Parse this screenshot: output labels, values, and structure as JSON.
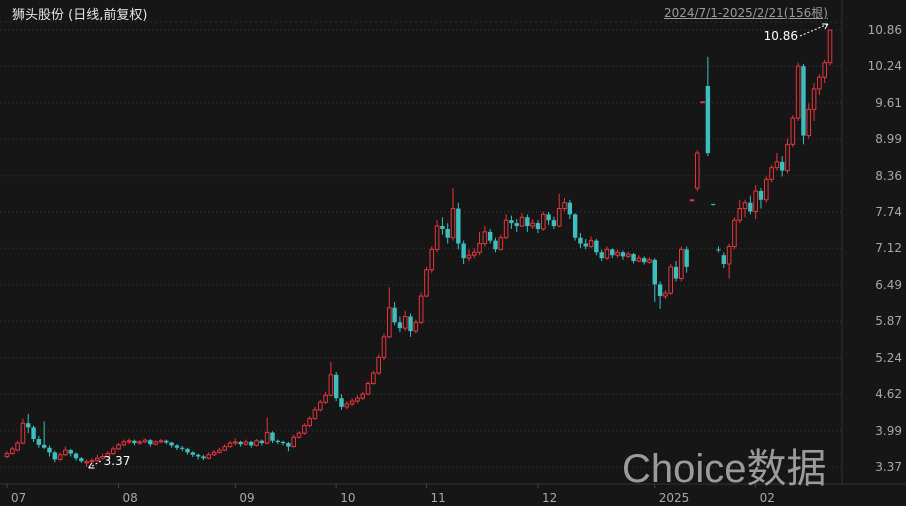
{
  "header": {
    "title": "狮头股份 (日线,前复权)",
    "range": "2024/7/1-2025/2/21(156根)"
  },
  "watermark": "Choice数据",
  "chart_data": {
    "type": "candlestick",
    "title": "狮头股份 (日线,前复权)",
    "ylim": [
      3.37,
      10.86
    ],
    "grid": true,
    "colors": {
      "up": "#e5363d",
      "down": "#3ebfbf",
      "grid": "#3a3a3a",
      "axis_text": "#a8a8a8",
      "background": "#161616"
    },
    "y_ticks": [
      "10.86",
      "10.24",
      "9.61",
      "8.99",
      "8.36",
      "7.74",
      "7.12",
      "6.49",
      "5.87",
      "5.24",
      "4.62",
      "3.99",
      "3.37"
    ],
    "x_labels": [
      {
        "label": "07",
        "index": 0
      },
      {
        "label": "08",
        "index": 21
      },
      {
        "label": "09",
        "index": 43
      },
      {
        "label": "10",
        "index": 62
      },
      {
        "label": "11",
        "index": 79
      },
      {
        "label": "12",
        "index": 100
      },
      {
        "label": "2025",
        "index": 122
      },
      {
        "label": "02",
        "index": 141
      }
    ],
    "annotations": {
      "max": {
        "label": "10.86",
        "index": 155
      },
      "min": {
        "label": "3.37",
        "index": 15
      }
    },
    "ohlc": [
      [
        3.55,
        3.64,
        3.52,
        3.6
      ],
      [
        3.6,
        3.72,
        3.58,
        3.68
      ],
      [
        3.66,
        3.82,
        3.64,
        3.78
      ],
      [
        3.78,
        4.2,
        3.76,
        4.12
      ],
      [
        4.12,
        4.28,
        3.95,
        4.05
      ],
      [
        4.05,
        4.08,
        3.8,
        3.85
      ],
      [
        3.85,
        3.9,
        3.7,
        3.75
      ],
      [
        3.75,
        4.15,
        3.68,
        3.7
      ],
      [
        3.7,
        3.74,
        3.55,
        3.62
      ],
      [
        3.62,
        3.65,
        3.45,
        3.5
      ],
      [
        3.5,
        3.62,
        3.48,
        3.58
      ],
      [
        3.58,
        3.72,
        3.56,
        3.66
      ],
      [
        3.66,
        3.68,
        3.55,
        3.6
      ],
      [
        3.6,
        3.62,
        3.48,
        3.52
      ],
      [
        3.52,
        3.54,
        3.44,
        3.47
      ],
      [
        3.44,
        3.5,
        3.37,
        3.46
      ],
      [
        3.46,
        3.52,
        3.42,
        3.48
      ],
      [
        3.48,
        3.58,
        3.46,
        3.52
      ],
      [
        3.52,
        3.6,
        3.5,
        3.55
      ],
      [
        3.55,
        3.64,
        3.52,
        3.6
      ],
      [
        3.6,
        3.72,
        3.58,
        3.68
      ],
      [
        3.68,
        3.78,
        3.66,
        3.75
      ],
      [
        3.75,
        3.84,
        3.72,
        3.8
      ],
      [
        3.8,
        3.86,
        3.76,
        3.82
      ],
      [
        3.82,
        3.84,
        3.74,
        3.78
      ],
      [
        3.78,
        3.83,
        3.75,
        3.8
      ],
      [
        3.8,
        3.86,
        3.78,
        3.83
      ],
      [
        3.83,
        3.85,
        3.72,
        3.76
      ],
      [
        3.76,
        3.83,
        3.74,
        3.8
      ],
      [
        3.8,
        3.85,
        3.78,
        3.82
      ],
      [
        3.82,
        3.84,
        3.76,
        3.79
      ],
      [
        3.79,
        3.8,
        3.7,
        3.74
      ],
      [
        3.74,
        3.76,
        3.66,
        3.7
      ],
      [
        3.7,
        3.73,
        3.64,
        3.68
      ],
      [
        3.68,
        3.7,
        3.58,
        3.62
      ],
      [
        3.62,
        3.64,
        3.54,
        3.58
      ],
      [
        3.58,
        3.6,
        3.5,
        3.55
      ],
      [
        3.55,
        3.58,
        3.49,
        3.52
      ],
      [
        3.52,
        3.62,
        3.5,
        3.58
      ],
      [
        3.58,
        3.66,
        3.56,
        3.62
      ],
      [
        3.62,
        3.7,
        3.6,
        3.66
      ],
      [
        3.66,
        3.76,
        3.64,
        3.72
      ],
      [
        3.72,
        3.82,
        3.7,
        3.78
      ],
      [
        3.78,
        3.86,
        3.74,
        3.8
      ],
      [
        3.8,
        3.82,
        3.72,
        3.76
      ],
      [
        3.76,
        3.84,
        3.74,
        3.8
      ],
      [
        3.8,
        3.82,
        3.7,
        3.74
      ],
      [
        3.74,
        3.85,
        3.72,
        3.82
      ],
      [
        3.82,
        3.84,
        3.74,
        3.78
      ],
      [
        3.78,
        4.22,
        3.76,
        3.96
      ],
      [
        3.96,
        3.98,
        3.78,
        3.82
      ],
      [
        3.82,
        3.84,
        3.76,
        3.8
      ],
      [
        3.8,
        3.82,
        3.74,
        3.78
      ],
      [
        3.78,
        3.8,
        3.64,
        3.72
      ],
      [
        3.72,
        3.92,
        3.7,
        3.88
      ],
      [
        3.88,
        3.98,
        3.86,
        3.95
      ],
      [
        3.95,
        4.12,
        3.92,
        4.08
      ],
      [
        4.08,
        4.24,
        4.05,
        4.2
      ],
      [
        4.2,
        4.4,
        4.18,
        4.35
      ],
      [
        4.35,
        4.52,
        4.32,
        4.48
      ],
      [
        4.48,
        4.66,
        4.45,
        4.6
      ],
      [
        4.6,
        5.17,
        4.58,
        4.95
      ],
      [
        4.95,
        5.0,
        4.5,
        4.55
      ],
      [
        4.55,
        4.62,
        4.35,
        4.4
      ],
      [
        4.4,
        4.5,
        4.36,
        4.45
      ],
      [
        4.45,
        4.55,
        4.42,
        4.5
      ],
      [
        4.5,
        4.6,
        4.46,
        4.55
      ],
      [
        4.55,
        4.66,
        4.52,
        4.62
      ],
      [
        4.62,
        4.84,
        4.6,
        4.8
      ],
      [
        4.8,
        5.02,
        4.78,
        4.98
      ],
      [
        4.98,
        5.3,
        4.95,
        5.25
      ],
      [
        5.25,
        5.66,
        5.2,
        5.6
      ],
      [
        5.6,
        6.45,
        5.58,
        6.1
      ],
      [
        6.1,
        6.2,
        5.8,
        5.85
      ],
      [
        5.85,
        5.95,
        5.68,
        5.75
      ],
      [
        5.75,
        6.05,
        5.7,
        5.95
      ],
      [
        5.95,
        6.0,
        5.6,
        5.7
      ],
      [
        5.7,
        5.9,
        5.66,
        5.85
      ],
      [
        5.85,
        6.36,
        5.82,
        6.3
      ],
      [
        6.3,
        6.8,
        6.28,
        6.75
      ],
      [
        6.75,
        7.15,
        6.7,
        7.1
      ],
      [
        7.1,
        7.6,
        7.05,
        7.5
      ],
      [
        7.5,
        7.65,
        7.35,
        7.45
      ],
      [
        7.45,
        7.55,
        7.2,
        7.3
      ],
      [
        7.3,
        8.15,
        7.25,
        7.8
      ],
      [
        7.8,
        7.9,
        7.1,
        7.2
      ],
      [
        7.2,
        7.25,
        6.85,
        6.95
      ],
      [
        6.95,
        7.1,
        6.9,
        7.0
      ],
      [
        7.0,
        7.12,
        6.95,
        7.05
      ],
      [
        7.05,
        7.4,
        7.0,
        7.2
      ],
      [
        7.2,
        7.5,
        7.15,
        7.4
      ],
      [
        7.4,
        7.45,
        7.2,
        7.25
      ],
      [
        7.25,
        7.3,
        7.05,
        7.1
      ],
      [
        7.1,
        7.35,
        7.08,
        7.3
      ],
      [
        7.3,
        7.7,
        7.28,
        7.6
      ],
      [
        7.6,
        7.68,
        7.45,
        7.55
      ],
      [
        7.55,
        7.62,
        7.4,
        7.5
      ],
      [
        7.5,
        7.72,
        7.48,
        7.65
      ],
      [
        7.65,
        7.7,
        7.4,
        7.5
      ],
      [
        7.5,
        7.62,
        7.45,
        7.55
      ],
      [
        7.55,
        7.6,
        7.38,
        7.45
      ],
      [
        7.45,
        7.75,
        7.42,
        7.7
      ],
      [
        7.7,
        7.74,
        7.52,
        7.6
      ],
      [
        7.6,
        7.66,
        7.45,
        7.5
      ],
      [
        7.5,
        8.05,
        7.48,
        7.8
      ],
      [
        7.8,
        7.98,
        7.75,
        7.9
      ],
      [
        7.9,
        7.95,
        7.62,
        7.7
      ],
      [
        7.7,
        7.72,
        7.25,
        7.3
      ],
      [
        7.3,
        7.38,
        7.12,
        7.2
      ],
      [
        7.2,
        7.28,
        7.1,
        7.15
      ],
      [
        7.15,
        7.32,
        7.12,
        7.25
      ],
      [
        7.25,
        7.28,
        7.0,
        7.05
      ],
      [
        7.05,
        7.1,
        6.9,
        6.95
      ],
      [
        6.95,
        7.15,
        6.92,
        7.1
      ],
      [
        7.1,
        7.12,
        6.95,
        7.0
      ],
      [
        7.0,
        7.1,
        6.96,
        7.05
      ],
      [
        7.05,
        7.08,
        6.92,
        6.98
      ],
      [
        6.98,
        7.06,
        6.95,
        7.02
      ],
      [
        7.02,
        7.04,
        6.86,
        6.9
      ],
      [
        6.9,
        7.0,
        6.88,
        6.95
      ],
      [
        6.95,
        6.98,
        6.84,
        6.88
      ],
      [
        6.88,
        6.96,
        6.85,
        6.92
      ],
      [
        6.92,
        6.95,
        6.2,
        6.5
      ],
      [
        6.5,
        6.55,
        6.08,
        6.3
      ],
      [
        6.3,
        6.4,
        6.25,
        6.35
      ],
      [
        6.35,
        6.85,
        6.32,
        6.8
      ],
      [
        6.8,
        6.9,
        6.55,
        6.6
      ],
      [
        6.6,
        7.15,
        6.55,
        7.1
      ],
      [
        7.1,
        7.15,
        6.7,
        6.8
      ],
      [
        7.95,
        7.95,
        7.95,
        7.95
      ],
      [
        8.15,
        8.8,
        8.1,
        8.75
      ],
      [
        9.63,
        9.63,
        9.63,
        9.63
      ],
      [
        9.9,
        10.4,
        8.7,
        8.75
      ],
      [
        7.88,
        7.88,
        7.85,
        7.87
      ],
      [
        7.1,
        7.15,
        7.05,
        7.09
      ],
      [
        7.0,
        7.05,
        6.78,
        6.85
      ],
      [
        6.85,
        7.2,
        6.6,
        7.15
      ],
      [
        7.15,
        7.65,
        7.1,
        7.6
      ],
      [
        7.6,
        7.95,
        7.55,
        7.8
      ],
      [
        7.8,
        7.95,
        7.65,
        7.9
      ],
      [
        7.9,
        8.02,
        7.7,
        7.75
      ],
      [
        7.75,
        8.2,
        7.62,
        8.1
      ],
      [
        8.1,
        8.15,
        7.8,
        7.95
      ],
      [
        7.95,
        8.35,
        7.9,
        8.3
      ],
      [
        8.3,
        8.55,
        8.25,
        8.5
      ],
      [
        8.5,
        8.75,
        8.45,
        8.6
      ],
      [
        8.6,
        8.7,
        8.35,
        8.45
      ],
      [
        8.45,
        9.0,
        8.4,
        8.9
      ],
      [
        8.9,
        9.4,
        8.85,
        9.35
      ],
      [
        9.35,
        10.3,
        9.3,
        10.24
      ],
      [
        10.24,
        10.28,
        8.9,
        9.05
      ],
      [
        9.05,
        9.6,
        9.0,
        9.5
      ],
      [
        9.5,
        9.95,
        9.3,
        9.85
      ],
      [
        9.85,
        10.1,
        9.75,
        10.05
      ],
      [
        10.05,
        10.35,
        9.95,
        10.3
      ],
      [
        10.3,
        10.86,
        10.25,
        10.86
      ]
    ]
  }
}
